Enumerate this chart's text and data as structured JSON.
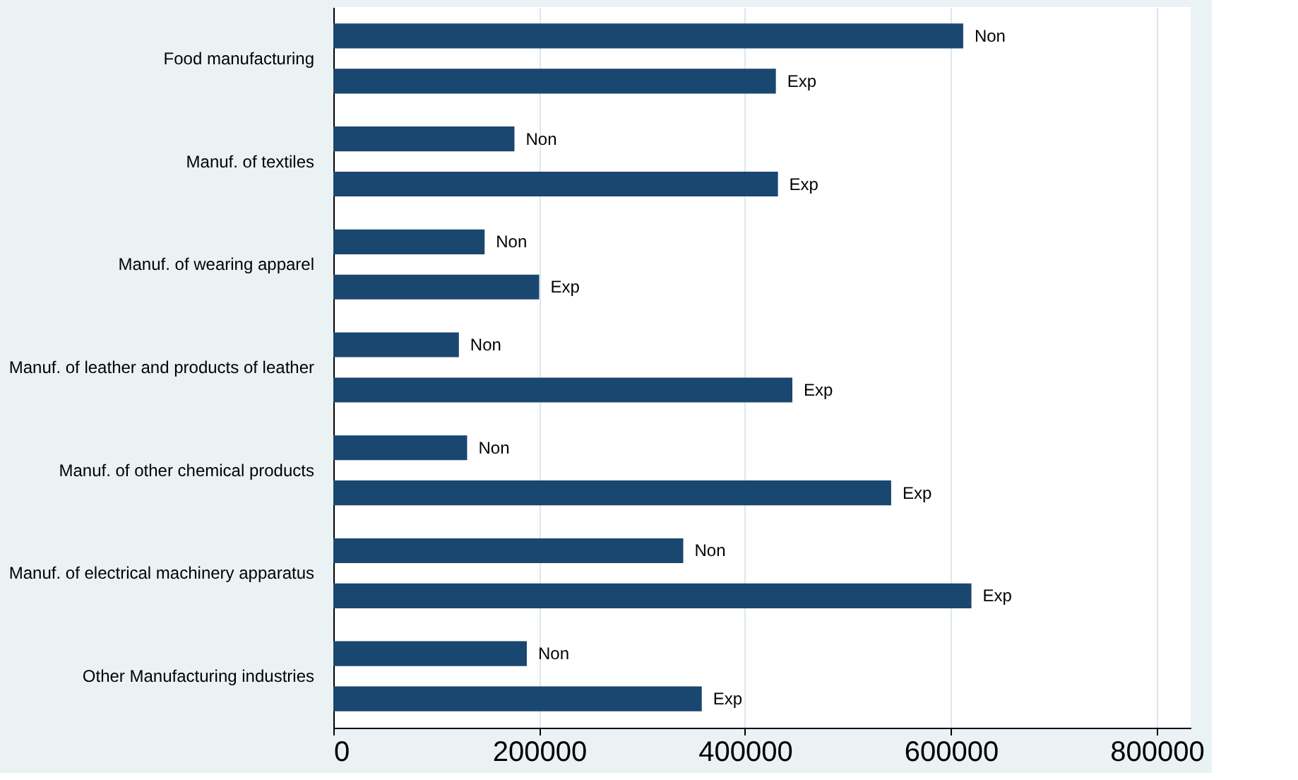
{
  "chart_data": {
    "type": "bar",
    "orientation": "horizontal",
    "categories": [
      "Food manufacturing",
      "Manuf. of textiles",
      "Manuf. of wearing apparel",
      "Manuf. of leather and products of leather",
      "Manuf. of other chemical products",
      "Manuf. of electrical machinery apparatus",
      "Other Manufacturing industries"
    ],
    "series": [
      {
        "name": "Non",
        "color": "#1a476f",
        "values": [
          612000,
          176000,
          147000,
          122000,
          130000,
          340000,
          188000
        ]
      },
      {
        "name": "Exp",
        "color": "#1a476f",
        "values": [
          430000,
          432000,
          200000,
          446000,
          542000,
          620000,
          358000
        ]
      }
    ],
    "xlim": [
      0,
      833000
    ],
    "xticks": [
      0,
      200000,
      400000,
      600000,
      800000
    ],
    "grid": "x"
  }
}
